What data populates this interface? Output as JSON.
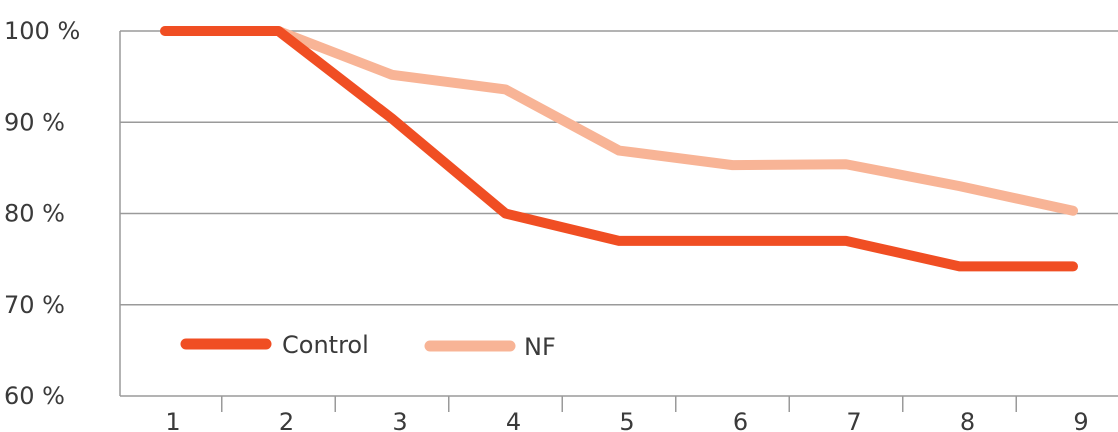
{
  "chart_data": {
    "type": "line",
    "categories": [
      "1",
      "2",
      "3",
      "4",
      "5",
      "6",
      "7",
      "8",
      "9"
    ],
    "series": [
      {
        "name": "Control",
        "color": "#f04e23",
        "values": [
          100,
          100,
          90.4,
          80,
          77,
          77,
          77,
          74.2,
          74.2
        ]
      },
      {
        "name": "NF",
        "color": "#f8b496",
        "values": [
          100,
          100,
          95.2,
          93.6,
          86.9,
          85.3,
          85.4,
          83,
          80.3
        ]
      }
    ],
    "y_ticks": [
      {
        "value": 100,
        "label": "100 %"
      },
      {
        "value": 90,
        "label": "90 %"
      },
      {
        "value": 80,
        "label": "80 %"
      },
      {
        "value": 70,
        "label": "70 %"
      },
      {
        "value": 60,
        "label": "60 %"
      }
    ],
    "ylim": [
      60,
      100
    ],
    "grid": true,
    "legend_position": "bottom-left",
    "axis_color": "#9a9a9a"
  }
}
